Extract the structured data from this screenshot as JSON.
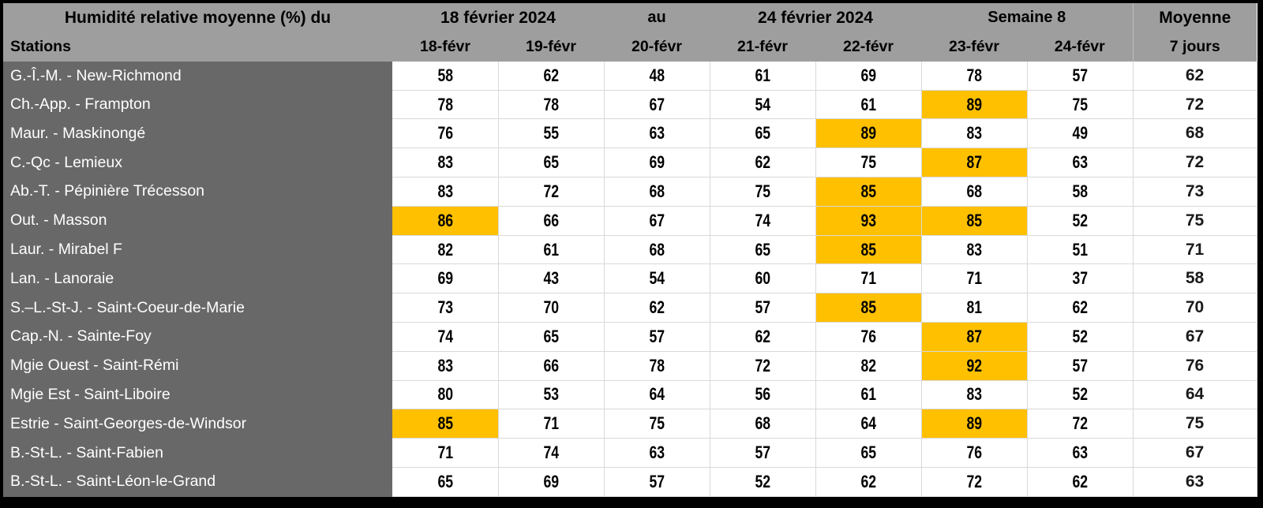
{
  "table": {
    "title": "Humidité relative moyenne (%) du",
    "start_date": "18 février 2024",
    "separator": "au",
    "end_date": "24 février 2024",
    "week": "Semaine 8",
    "average_header": "Moyenne",
    "stations_header": "Stations",
    "day_headers": [
      "18-févr",
      "19-févr",
      "20-févr",
      "21-févr",
      "22-févr",
      "23-févr",
      "24-févr"
    ],
    "average_subheader": "7 jours"
  },
  "highlight_threshold": 85,
  "colors": {
    "header_bg": "#9e9e9e",
    "station_col_bg": "#686868",
    "highlight": "#ffc000",
    "gridline": "#d9d9d9",
    "frame": "#000000"
  },
  "chart_data": {
    "type": "table",
    "title": "Humidité relative moyenne (%) du 18 février 2024 au 24 février 2024 — Semaine 8",
    "columns": [
      "Stations",
      "18-févr",
      "19-févr",
      "20-févr",
      "21-févr",
      "22-févr",
      "23-févr",
      "24-févr",
      "Moyenne 7 jours"
    ],
    "highlight_rule": "daily value >= 85 filled with #ffc000",
    "rows": [
      {
        "station": "G.-Î.-M. - New-Richmond",
        "values": [
          58,
          62,
          48,
          61,
          69,
          78,
          57
        ],
        "mean": 62
      },
      {
        "station": "Ch.-App. - Frampton",
        "values": [
          78,
          78,
          67,
          54,
          61,
          89,
          75
        ],
        "mean": 72
      },
      {
        "station": "Maur. - Maskinongé",
        "values": [
          76,
          55,
          63,
          65,
          89,
          83,
          49
        ],
        "mean": 68
      },
      {
        "station": "C.-Qc - Lemieux",
        "values": [
          83,
          65,
          69,
          62,
          75,
          87,
          63
        ],
        "mean": 72
      },
      {
        "station": "Ab.-T. - Pépinière Trécesson",
        "values": [
          83,
          72,
          68,
          75,
          85,
          68,
          58
        ],
        "mean": 73
      },
      {
        "station": "Out. - Masson",
        "values": [
          86,
          66,
          67,
          74,
          93,
          85,
          52
        ],
        "mean": 75
      },
      {
        "station": "Laur. - Mirabel F",
        "values": [
          82,
          61,
          68,
          65,
          85,
          83,
          51
        ],
        "mean": 71
      },
      {
        "station": "Lan. - Lanoraie",
        "values": [
          69,
          43,
          54,
          60,
          71,
          71,
          37
        ],
        "mean": 58
      },
      {
        "station": "S.–L.-St-J. - Saint-Coeur-de-Marie",
        "values": [
          73,
          70,
          62,
          57,
          85,
          81,
          62
        ],
        "mean": 70
      },
      {
        "station": "Cap.-N. - Sainte-Foy",
        "values": [
          74,
          65,
          57,
          62,
          76,
          87,
          52
        ],
        "mean": 67
      },
      {
        "station": "Mgie Ouest - Saint-Rémi",
        "values": [
          83,
          66,
          78,
          72,
          82,
          92,
          57
        ],
        "mean": 76
      },
      {
        "station": "Mgie Est - Saint-Liboire",
        "values": [
          80,
          53,
          64,
          56,
          61,
          83,
          52
        ],
        "mean": 64
      },
      {
        "station": "Estrie - Saint-Georges-de-Windsor",
        "values": [
          85,
          71,
          75,
          68,
          64,
          89,
          72
        ],
        "mean": 75
      },
      {
        "station": "B.-St-L. - Saint-Fabien",
        "values": [
          71,
          74,
          63,
          57,
          65,
          76,
          63
        ],
        "mean": 67
      },
      {
        "station": "B.-St-L. - Saint-Léon-le-Grand",
        "values": [
          65,
          69,
          57,
          52,
          62,
          72,
          62
        ],
        "mean": 63
      }
    ]
  }
}
